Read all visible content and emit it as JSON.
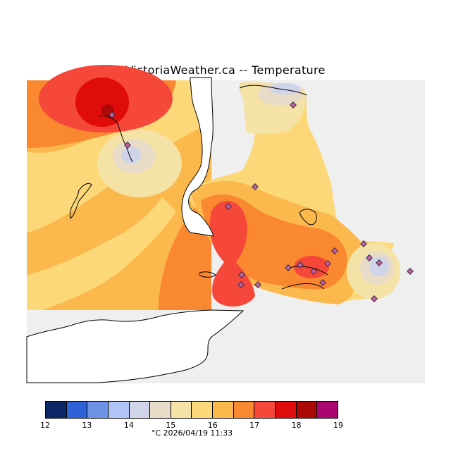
{
  "title": "VictoriaWeather.ca -- Temperature",
  "legend": {
    "unit_caption": "°C  2026/04/19 11:33",
    "ticks": [
      "12",
      "13",
      "14",
      "15",
      "16",
      "17",
      "18",
      "19"
    ],
    "colors": [
      "#0c2766",
      "#2f62d6",
      "#6e93e6",
      "#b0c5f5",
      "#cfd4e8",
      "#e8dcc8",
      "#f5e2a6",
      "#fdd878",
      "#fbb84d",
      "#f98830",
      "#f5473a",
      "#e00b0b",
      "#ac0808",
      "#a90670"
    ]
  },
  "map": {
    "background_color": "#efefef",
    "land_color": "#ffffff",
    "station_color": "#c45da8",
    "temperature_zones": [
      {
        "name": "zone-15-5",
        "color": "#f5e2a6"
      },
      {
        "name": "zone-16",
        "color": "#fdd878"
      },
      {
        "name": "zone-16-5",
        "color": "#fbb84d"
      },
      {
        "name": "zone-17",
        "color": "#f98830"
      },
      {
        "name": "zone-17-5",
        "color": "#f5473a"
      },
      {
        "name": "zone-18",
        "color": "#e00b0b"
      },
      {
        "name": "zone-18-5",
        "color": "#ac0808"
      },
      {
        "name": "zone-14-5",
        "color": "#e8dcc8"
      },
      {
        "name": "zone-14",
        "color": "#cfd4e8"
      }
    ]
  }
}
